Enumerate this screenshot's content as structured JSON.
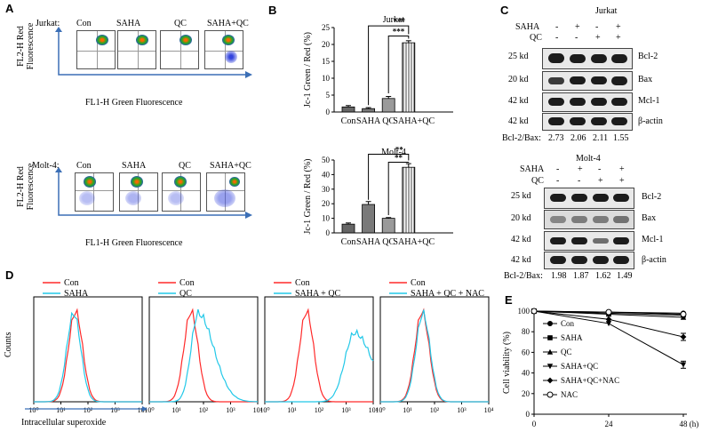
{
  "panelA": {
    "letter": "A",
    "jurkat_row_label": "Jurkat:",
    "molt_row_label": "Molt-4:",
    "conditions": [
      "Con",
      "SAHA",
      "QC",
      "SAHA+QC"
    ],
    "y_axis_line1": "FL2-H Red",
    "y_axis_line2": "Fluorescence",
    "x_axis": "FL1-H Green Fluorescence"
  },
  "panelB": {
    "letter": "B",
    "ylabel": "Jc-1 Green / Red (%)"
  },
  "panelC": {
    "letter": "C",
    "jurkat_title": "Jurkat",
    "molt_title": "Molt-4",
    "saha_label": "SAHA",
    "qc_label": "QC",
    "saha_signs": [
      "-",
      "+",
      "-",
      "+"
    ],
    "qc_signs": [
      "-",
      "-",
      "+",
      "+"
    ],
    "markers": [
      "25 kd",
      "20 kd",
      "42 kd",
      "42 kd"
    ],
    "proteins": [
      "Bcl-2",
      "Bax",
      "Mcl-1",
      "β-actin"
    ],
    "jurkat_ratio_label": "Bcl-2/Bax:",
    "jurkat_ratios": [
      "2.73",
      "2.06",
      "2.11",
      "1.55"
    ],
    "molt_ratio_label": "Bcl-2/Bax:",
    "molt_ratios": [
      "1.98",
      "1.87",
      "1.62",
      "1.49"
    ]
  },
  "panelD": {
    "letter": "D",
    "ylabel": "Counts",
    "xlabel": "Intracellular superoxide",
    "control_label": "Con",
    "treatments": [
      "SAHA",
      "QC",
      "SAHA + QC",
      "SAHA + QC + NAC"
    ],
    "tick_labels": [
      "10⁰",
      "10¹",
      "10²",
      "10³",
      "10⁴"
    ]
  },
  "panelE": {
    "letter": "E"
  },
  "chart_data": [
    {
      "type": "bar",
      "title": "Jurkat",
      "categories": [
        "Con",
        "SAHA",
        "QC",
        "SAHA+QC"
      ],
      "values": [
        1.5,
        1,
        4,
        20.5
      ],
      "errors": [
        0.4,
        0.3,
        0.6,
        0.6
      ],
      "ylabel": "Jc-1 Green / Red (%)",
      "ylim": [
        0,
        25
      ],
      "yticks": [
        0,
        5,
        10,
        15,
        20,
        25
      ],
      "significance": [
        "***",
        "***"
      ]
    },
    {
      "type": "bar",
      "title": "Molt-4",
      "categories": [
        "Con",
        "SAHA",
        "QC",
        "SAHA+QC"
      ],
      "values": [
        6,
        19.5,
        10,
        45
      ],
      "errors": [
        0.8,
        2,
        0.5,
        2.5
      ],
      "ylabel": "Jc-1 Green / Red (%)",
      "ylim": [
        0,
        50
      ],
      "yticks": [
        0,
        10,
        20,
        30,
        40,
        50
      ],
      "significance": [
        "**",
        "**"
      ]
    },
    {
      "type": "line",
      "title": "",
      "xlabel": "(h)",
      "ylabel": "Cell viability (%)",
      "x": [
        0,
        24,
        48
      ],
      "xlim": [
        0,
        48
      ],
      "ylim": [
        0,
        100
      ],
      "yticks": [
        0,
        20,
        40,
        60,
        80,
        100
      ],
      "series": [
        {
          "name": "Con",
          "values": [
            100,
            99,
            98
          ]
        },
        {
          "name": "SAHA",
          "values": [
            100,
            98,
            96
          ]
        },
        {
          "name": "QC",
          "values": [
            100,
            97,
            94
          ]
        },
        {
          "name": "SAHA+QC",
          "values": [
            100,
            88,
            48
          ]
        },
        {
          "name": "SAHA+QC+NAC",
          "values": [
            100,
            92,
            75
          ]
        },
        {
          "name": "NAC",
          "values": [
            100,
            99,
            97
          ]
        }
      ]
    }
  ]
}
